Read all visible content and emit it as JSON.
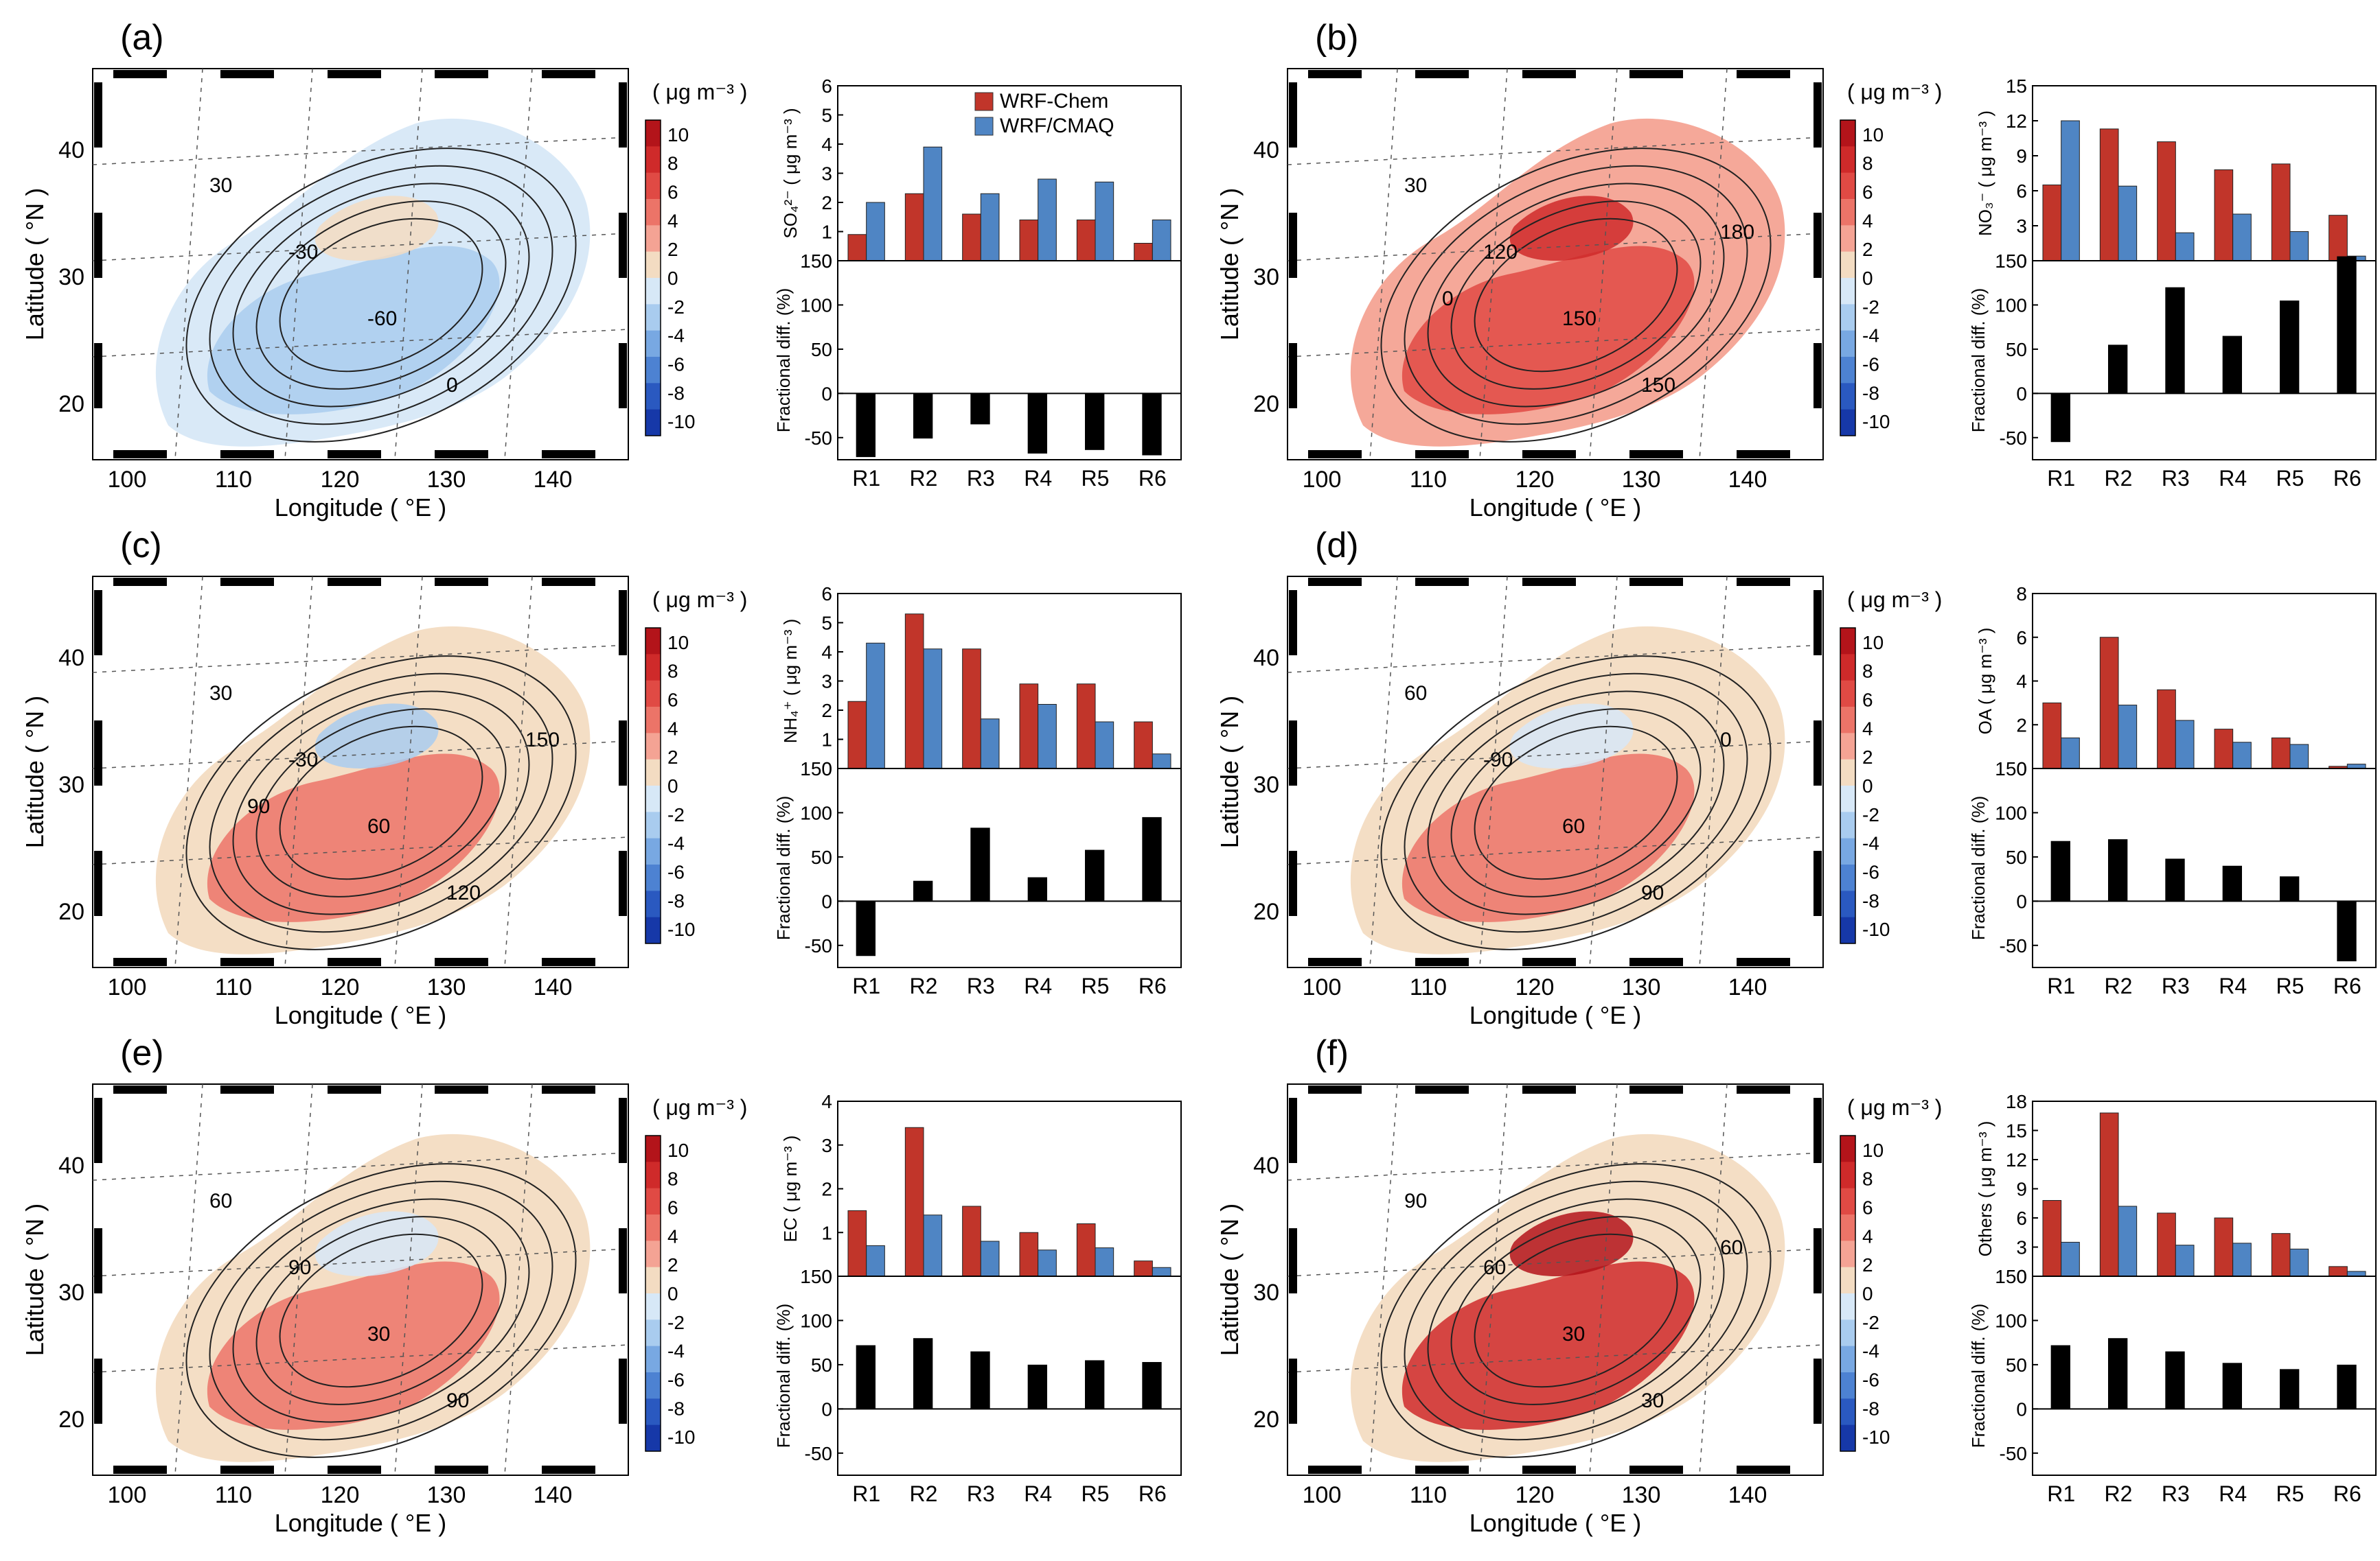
{
  "figure": {
    "unit_label": "( μg m⁻³ )",
    "colorbar_ticks": [
      "10",
      "8",
      "6",
      "4",
      "2",
      "0",
      "-2",
      "-4",
      "-6",
      "-8",
      "-10"
    ],
    "colorbar_colors": [
      "#b3141a",
      "#cf2a2a",
      "#e04a44",
      "#ec7468",
      "#f4a394",
      "#f3dcc2",
      "#d7e8f7",
      "#a9ccef",
      "#78a8e2",
      "#4d82d2",
      "#2a59c0",
      "#1638a8"
    ],
    "map_xlabel": "Longitude ( °E )",
    "map_ylabel": "Latitude ( °N )",
    "map_xticks": [
      "100",
      "110",
      "120",
      "130",
      "140"
    ],
    "map_yticks": [
      "20",
      "30",
      "40"
    ],
    "colors": {
      "wrf_chem": "#c1352a",
      "wrf_cmaq": "#4f85c4",
      "fractional": "#000000"
    }
  },
  "chart_data": [
    {
      "panel": "(a)",
      "type": "bar",
      "species_label": "SO₄²⁻ ( μg m⁻³ )",
      "categories": [
        "R1",
        "R2",
        "R3",
        "R4",
        "R5",
        "R6"
      ],
      "series": [
        {
          "name": "WRF-Chem",
          "values": [
            0.9,
            2.3,
            1.6,
            1.4,
            1.4,
            0.6
          ]
        },
        {
          "name": "WRF/CMAQ",
          "values": [
            2.0,
            3.9,
            2.3,
            2.8,
            2.7,
            1.4
          ]
        }
      ],
      "ylim": [
        0,
        6
      ],
      "yticks": [
        "0",
        "1",
        "2",
        "3",
        "4",
        "5",
        "6"
      ],
      "fractional_label": "Fractional diff. (%)",
      "fractional_diff": [
        -72,
        -51,
        -35,
        -68,
        -64,
        -70
      ],
      "fractional_ylim": [
        -75,
        150
      ],
      "fractional_yticks": [
        "-50",
        "0",
        "50",
        "100",
        "150"
      ],
      "contour_labels": [
        "30",
        "-30",
        "-60",
        "0"
      ],
      "map_pattern": "blue"
    },
    {
      "panel": "(b)",
      "type": "bar",
      "species_label": "NO₃⁻ ( μg m⁻³ )",
      "categories": [
        "R1",
        "R2",
        "R3",
        "R4",
        "R5",
        "R6"
      ],
      "series": [
        {
          "name": "WRF-Chem",
          "values": [
            6.5,
            11.3,
            10.2,
            7.8,
            8.3,
            3.9
          ]
        },
        {
          "name": "WRF/CMAQ",
          "values": [
            12.0,
            6.4,
            2.4,
            4.0,
            2.5,
            0.4
          ]
        }
      ],
      "ylim": [
        0,
        15
      ],
      "yticks": [
        "0",
        "3",
        "6",
        "9",
        "12",
        "15"
      ],
      "fractional_label": "Fractional diff. (%)",
      "fractional_diff": [
        -55,
        55,
        120,
        65,
        105,
        155
      ],
      "fractional_ylim": [
        -75,
        150
      ],
      "fractional_yticks": [
        "-50",
        "0",
        "50",
        "100",
        "150"
      ],
      "contour_labels": [
        "30",
        "120",
        "150",
        "150",
        "180",
        "0"
      ],
      "map_pattern": "red"
    },
    {
      "panel": "(c)",
      "type": "bar",
      "species_label": "NH₄⁺ ( μg m⁻³ )",
      "categories": [
        "R1",
        "R2",
        "R3",
        "R4",
        "R5",
        "R6"
      ],
      "series": [
        {
          "name": "WRF-Chem",
          "values": [
            2.3,
            5.3,
            4.1,
            2.9,
            2.9,
            1.6
          ]
        },
        {
          "name": "WRF/CMAQ",
          "values": [
            4.3,
            4.1,
            1.7,
            2.2,
            1.6,
            0.5
          ]
        }
      ],
      "ylim": [
        0,
        6
      ],
      "yticks": [
        "0",
        "1",
        "2",
        "3",
        "4",
        "5",
        "6"
      ],
      "fractional_label": "Fractional diff. (%)",
      "fractional_diff": [
        -62,
        23,
        83,
        27,
        58,
        95
      ],
      "fractional_ylim": [
        -75,
        150
      ],
      "fractional_yticks": [
        "-50",
        "0",
        "50",
        "100",
        "150"
      ],
      "contour_labels": [
        "30",
        "-30",
        "60",
        "120",
        "150",
        "90"
      ],
      "map_pattern": "mixed"
    },
    {
      "panel": "(d)",
      "type": "bar",
      "species_label": "OA ( μg m⁻³ )",
      "categories": [
        "R1",
        "R2",
        "R3",
        "R4",
        "R5",
        "R6"
      ],
      "series": [
        {
          "name": "WRF-Chem",
          "values": [
            3.0,
            6.0,
            3.6,
            1.8,
            1.4,
            0.1
          ]
        },
        {
          "name": "WRF/CMAQ",
          "values": [
            1.4,
            2.9,
            2.2,
            1.2,
            1.1,
            0.2
          ]
        }
      ],
      "ylim": [
        0,
        8
      ],
      "yticks": [
        "0",
        "2",
        "4",
        "6",
        "8"
      ],
      "fractional_label": "Fractional diff. (%)",
      "fractional_diff": [
        68,
        70,
        48,
        40,
        28,
        -68
      ],
      "fractional_ylim": [
        -75,
        150
      ],
      "fractional_yticks": [
        "-50",
        "0",
        "50",
        "100",
        "150"
      ],
      "contour_labels": [
        "60",
        "-90",
        "60",
        "90",
        "0"
      ],
      "map_pattern": "orange"
    },
    {
      "panel": "(e)",
      "type": "bar",
      "species_label": "EC ( μg m⁻³ )",
      "categories": [
        "R1",
        "R2",
        "R3",
        "R4",
        "R5",
        "R6"
      ],
      "series": [
        {
          "name": "WRF-Chem",
          "values": [
            1.5,
            3.4,
            1.6,
            1.0,
            1.2,
            0.35
          ]
        },
        {
          "name": "WRF/CMAQ",
          "values": [
            0.7,
            1.4,
            0.8,
            0.6,
            0.65,
            0.2
          ]
        }
      ],
      "ylim": [
        0,
        4
      ],
      "yticks": [
        "0",
        "1",
        "2",
        "3",
        "4"
      ],
      "fractional_label": "Fractional diff. (%)",
      "fractional_diff": [
        72,
        80,
        65,
        50,
        55,
        53
      ],
      "fractional_ylim": [
        -75,
        150
      ],
      "fractional_yticks": [
        "-50",
        "0",
        "50",
        "100",
        "150"
      ],
      "contour_labels": [
        "60",
        "90",
        "30",
        "90"
      ],
      "map_pattern": "orange"
    },
    {
      "panel": "(f)",
      "type": "bar",
      "species_label": "Others ( μg m⁻³ )",
      "categories": [
        "R1",
        "R2",
        "R3",
        "R4",
        "R5",
        "R6"
      ],
      "series": [
        {
          "name": "WRF-Chem",
          "values": [
            7.8,
            16.8,
            6.5,
            6.0,
            4.4,
            1.0
          ]
        },
        {
          "name": "WRF/CMAQ",
          "values": [
            3.5,
            7.2,
            3.2,
            3.4,
            2.8,
            0.5
          ]
        }
      ],
      "ylim": [
        0,
        18
      ],
      "yticks": [
        "0",
        "3",
        "6",
        "9",
        "12",
        "15",
        "18"
      ],
      "fractional_label": "Fractional diff. (%)",
      "fractional_diff": [
        72,
        80,
        65,
        52,
        45,
        50
      ],
      "fractional_ylim": [
        -75,
        150
      ],
      "fractional_yticks": [
        "-50",
        "0",
        "50",
        "100",
        "150"
      ],
      "contour_labels": [
        "90",
        "60",
        "30",
        "30",
        "60"
      ],
      "map_pattern": "darkred"
    }
  ]
}
